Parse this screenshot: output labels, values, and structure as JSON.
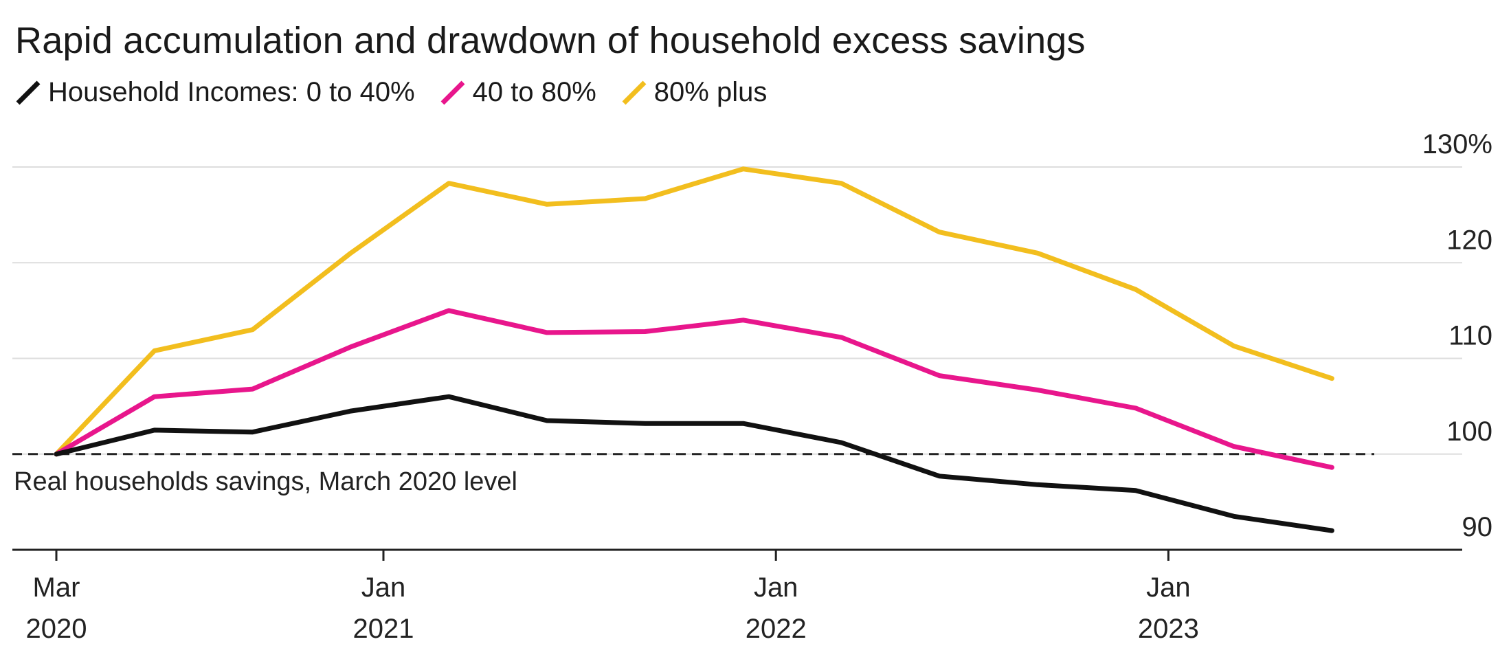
{
  "chart_data": {
    "type": "line",
    "title": "Rapid accumulation and drawdown of household excess savings",
    "legend_position": "top-left",
    "grid": "horizontal",
    "y_unit_label": "130%",
    "ylim": [
      90,
      130
    ],
    "yticks": [
      90,
      100,
      110,
      120,
      130
    ],
    "ytick_labels": [
      "90",
      "100",
      "110",
      "120",
      "130%"
    ],
    "x": [
      "2020-03",
      "2020-06",
      "2020-09",
      "2020-12",
      "2021-03",
      "2021-06",
      "2021-09",
      "2021-12",
      "2022-03",
      "2022-06",
      "2022-09",
      "2022-12",
      "2023-03",
      "2023-06"
    ],
    "xticks": [
      {
        "x": "2020-03",
        "line1": "Mar",
        "line2": "2020"
      },
      {
        "x": "2021-01",
        "line1": "Jan",
        "line2": "2021"
      },
      {
        "x": "2022-01",
        "line1": "Jan",
        "line2": "2022"
      },
      {
        "x": "2023-01",
        "line1": "Jan",
        "line2": "2023"
      }
    ],
    "series": [
      {
        "name": "Household Incomes: 0 to 40%",
        "color": "#111111",
        "values": [
          100,
          102.5,
          102.3,
          104.5,
          106,
          103.5,
          103.2,
          103.2,
          101.2,
          97.7,
          96.8,
          96.2,
          93.5,
          92
        ]
      },
      {
        "name": "40 to 80%",
        "color": "#e8168c",
        "values": [
          100,
          106,
          106.8,
          111.2,
          115,
          112.7,
          112.8,
          114,
          112.2,
          108.2,
          106.7,
          104.8,
          100.8,
          98.6
        ]
      },
      {
        "name": "80% plus",
        "color": "#f2be1e",
        "values": [
          100,
          110.8,
          113,
          121,
          128.3,
          126.1,
          126.7,
          129.8,
          128.3,
          123.2,
          121,
          117.2,
          111.3,
          107.9
        ]
      }
    ],
    "reference_line": {
      "value": 100,
      "label": "Real households savings, March 2020 level"
    }
  }
}
